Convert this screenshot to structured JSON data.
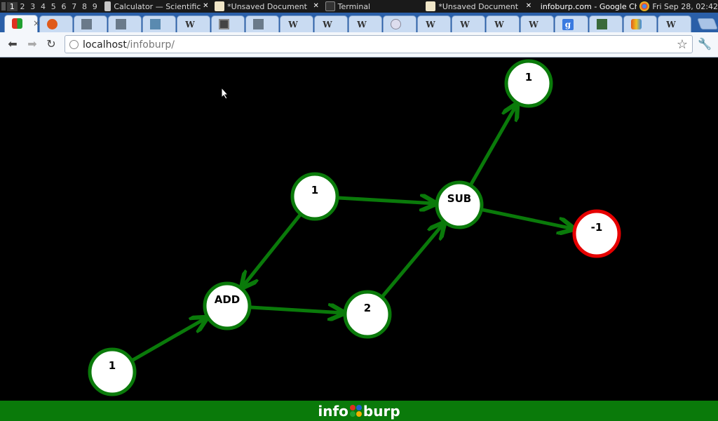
{
  "taskbar": {
    "workspaces": [
      "1",
      "2",
      "3",
      "4",
      "5",
      "6",
      "7",
      "8",
      "9"
    ],
    "active_workspace": "1",
    "tasks": [
      {
        "label": "Calculator — Scientific"
      },
      {
        "label": "*Unsaved Document"
      },
      {
        "label": "Terminal"
      },
      {
        "label": "*Unsaved Document"
      },
      {
        "label": "infoburp.com - Google Chrome"
      }
    ],
    "clock": "Fri Sep 28, 02:42"
  },
  "browser": {
    "tabs": [
      {
        "icon": "infoburp-icon",
        "active": true
      },
      {
        "icon": "ubuntu-icon"
      },
      {
        "icon": "page-icon"
      },
      {
        "icon": "page-icon"
      },
      {
        "icon": "diagram-icon"
      },
      {
        "icon": "wikipedia-icon",
        "glyph": "W"
      },
      {
        "icon": "film-icon"
      },
      {
        "icon": "page-icon"
      },
      {
        "icon": "wikipedia-icon",
        "glyph": "W"
      },
      {
        "icon": "wikipedia-icon",
        "glyph": "W"
      },
      {
        "icon": "wikipedia-icon",
        "glyph": "W"
      },
      {
        "icon": "globe-icon"
      },
      {
        "icon": "wikipedia-icon",
        "glyph": "W"
      },
      {
        "icon": "wikipedia-icon",
        "glyph": "W"
      },
      {
        "icon": "wikipedia-icon",
        "glyph": "W"
      },
      {
        "icon": "wikipedia-icon",
        "glyph": "W"
      },
      {
        "icon": "google-icon",
        "glyph": "g"
      },
      {
        "icon": "chart-icon"
      },
      {
        "icon": "store-icon"
      },
      {
        "icon": "wikipedia-icon",
        "glyph": "W"
      }
    ],
    "url_host": "localhost",
    "url_path": "/infoburp/",
    "close_glyph": "×"
  },
  "graph": {
    "nodes": [
      {
        "id": "n_one_bottom",
        "label": "1",
        "status": "ok"
      },
      {
        "id": "n_add",
        "label": "ADD",
        "status": "ok"
      },
      {
        "id": "n_one_mid",
        "label": "1",
        "status": "ok"
      },
      {
        "id": "n_two",
        "label": "2",
        "status": "ok"
      },
      {
        "id": "n_sub",
        "label": "SUB",
        "status": "ok"
      },
      {
        "id": "n_one_top",
        "label": "1",
        "status": "ok"
      },
      {
        "id": "n_neg_one",
        "label": "-1",
        "status": "error"
      }
    ],
    "edges": [
      {
        "from": "n_one_bottom",
        "to": "n_add"
      },
      {
        "from": "n_one_mid",
        "to": "n_add"
      },
      {
        "from": "n_add",
        "to": "n_two"
      },
      {
        "from": "n_one_mid",
        "to": "n_sub"
      },
      {
        "from": "n_two",
        "to": "n_sub"
      },
      {
        "from": "n_sub",
        "to": "n_one_top"
      },
      {
        "from": "n_sub",
        "to": "n_neg_one"
      }
    ],
    "colors": {
      "ok": "#0a7a0a",
      "error": "#e60000",
      "edge": "#0a7a0a",
      "node_fill": "#ffffff"
    }
  },
  "footer": {
    "logo_left": "info",
    "logo_right": "burp",
    "logo_dot_colors": [
      "#e03020",
      "#2060d0",
      "#20a030",
      "#f0b000"
    ],
    "background": "#0a7a0a"
  }
}
